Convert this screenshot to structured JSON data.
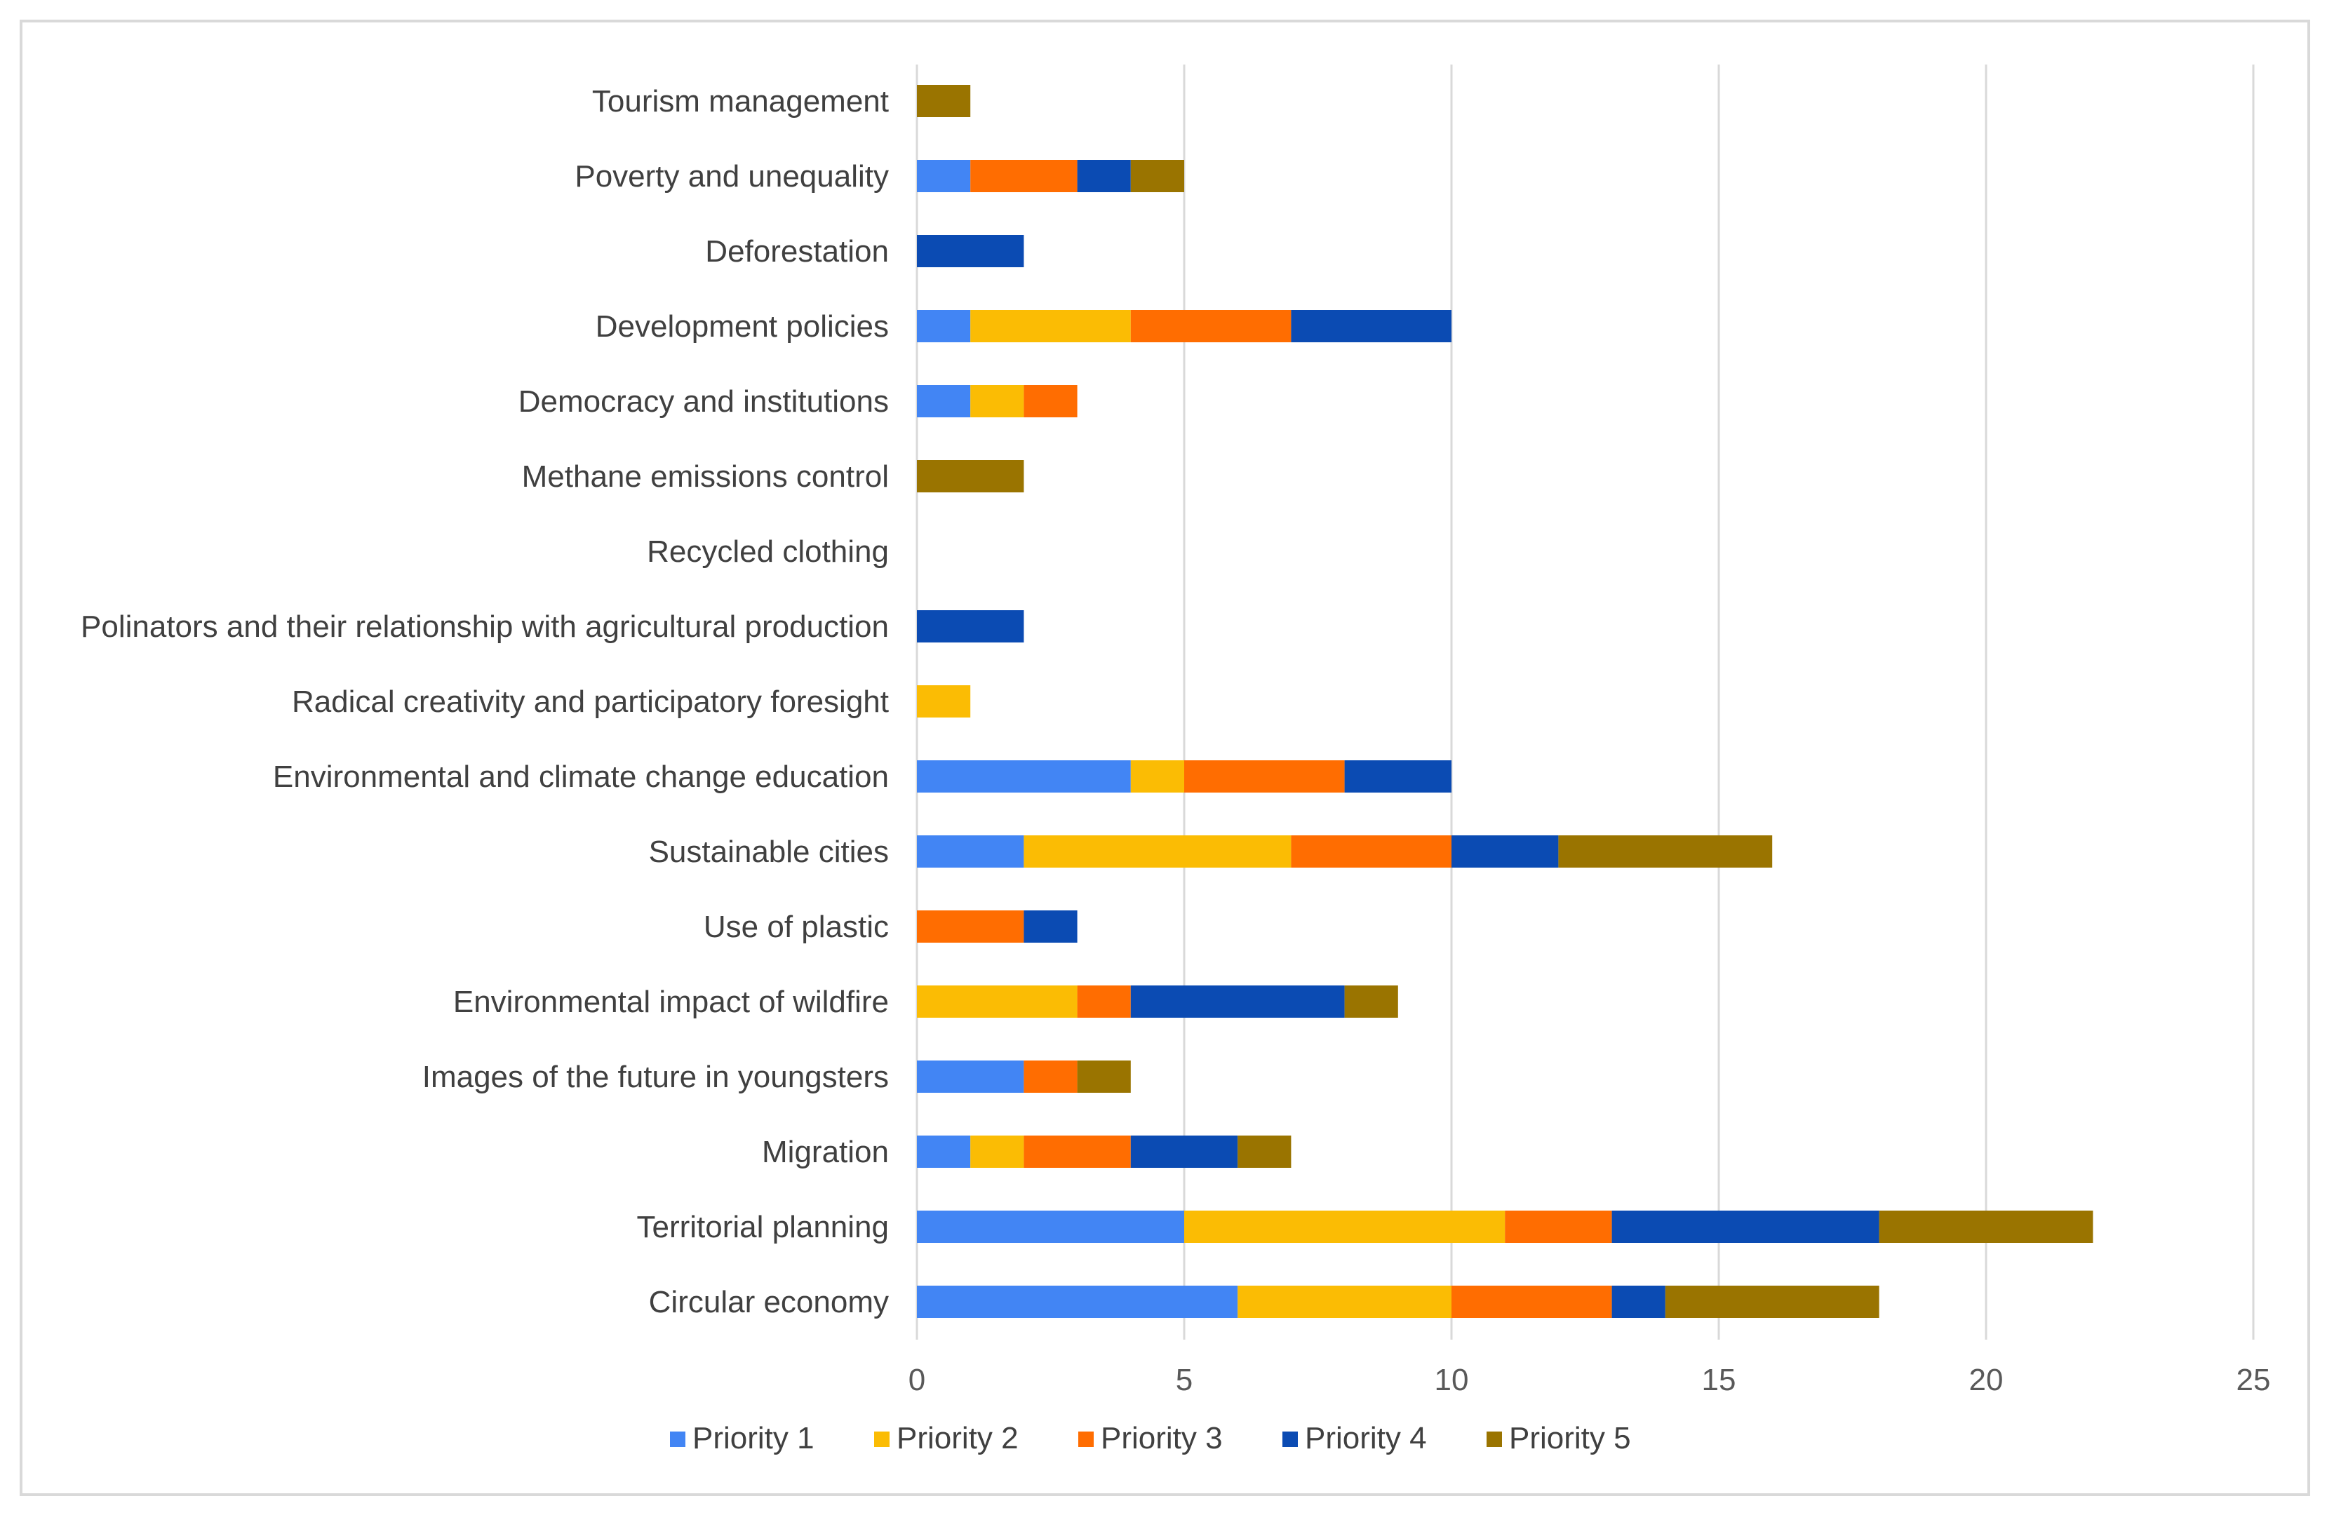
{
  "chart_data": {
    "type": "bar",
    "orientation": "horizontal",
    "stacked": true,
    "title": "",
    "xlabel": "",
    "ylabel": "",
    "xlim": [
      0,
      25
    ],
    "x_ticks": [
      0,
      5,
      10,
      15,
      20,
      25
    ],
    "grid": true,
    "legend_position": "bottom",
    "categories": [
      "Tourism management",
      "Poverty and unequality",
      "Deforestation",
      "Development policies",
      "Democracy and institutions",
      "Methane emissions control",
      "Recycled clothing",
      "Polinators and their relationship with agricultural production",
      "Radical creativity and participatory foresight",
      "Environmental and climate change education",
      "Sustainable cities",
      "Use of plastic",
      "Environmental impact of wildfire",
      "Images of the future in youngsters",
      "Migration",
      "Territorial planning",
      "Circular economy"
    ],
    "series": [
      {
        "name": "Priority 1",
        "color": "#4285f4",
        "values": [
          0,
          1,
          0,
          1,
          1,
          0,
          0,
          0,
          0,
          4,
          2,
          0,
          0,
          2,
          1,
          5,
          6
        ]
      },
      {
        "name": "Priority 2",
        "color": "#fbbc04",
        "values": [
          0,
          0,
          0,
          3,
          1,
          0,
          0,
          0,
          1,
          1,
          5,
          0,
          3,
          0,
          1,
          6,
          4
        ]
      },
      {
        "name": "Priority 3",
        "color": "#ff6d01",
        "values": [
          0,
          2,
          0,
          3,
          1,
          0,
          0,
          0,
          0,
          3,
          3,
          2,
          1,
          1,
          2,
          2,
          3
        ]
      },
      {
        "name": "Priority 4",
        "color": "#0b4bb3",
        "values": [
          0,
          1,
          2,
          3,
          0,
          0,
          0,
          2,
          0,
          2,
          2,
          1,
          4,
          0,
          2,
          5,
          1
        ]
      },
      {
        "name": "Priority 5",
        "color": "#9a7400",
        "values": [
          1,
          1,
          0,
          0,
          0,
          2,
          0,
          0,
          0,
          0,
          4,
          0,
          1,
          1,
          1,
          4,
          4
        ]
      }
    ]
  }
}
